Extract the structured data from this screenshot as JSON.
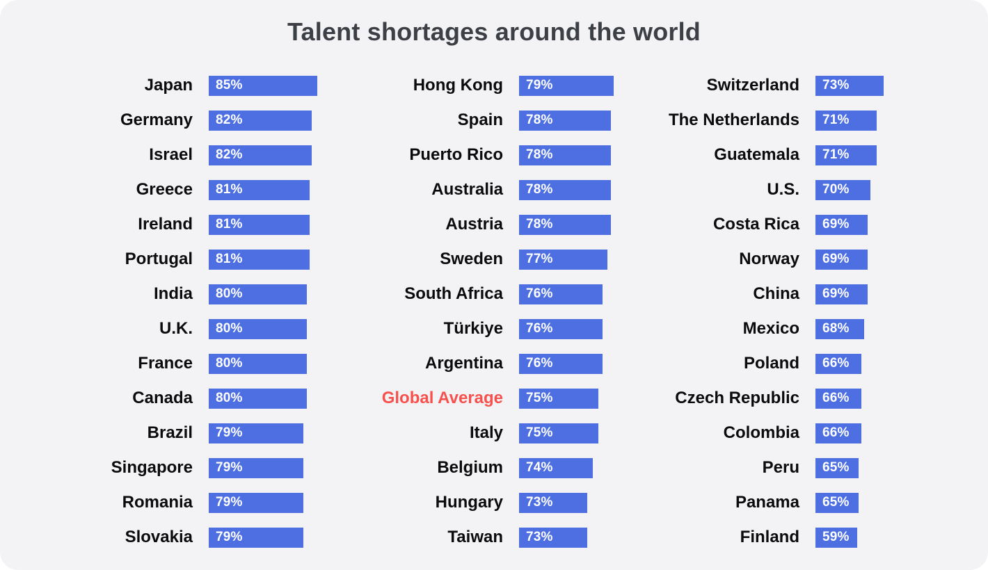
{
  "title": "Talent shortages around the world",
  "colors": {
    "bar": "#4d6fe2",
    "highlight_label": "#f7514d",
    "label": "#0b0b0e",
    "title": "#3c4046",
    "card_background": "#f3f3f5",
    "bar_text": "#ffffff"
  },
  "chart_data": {
    "type": "bar",
    "title": "Talent shortages around the world",
    "orientation": "horizontal",
    "unit": "%",
    "value_label_position": "inside-left",
    "grid": false,
    "legend": false,
    "highlighted_entry": "Global Average",
    "columns": [
      {
        "items": [
          {
            "label": "Japan",
            "value": 85
          },
          {
            "label": "Germany",
            "value": 82
          },
          {
            "label": "Israel",
            "value": 82
          },
          {
            "label": "Greece",
            "value": 81
          },
          {
            "label": "Ireland",
            "value": 81
          },
          {
            "label": "Portugal",
            "value": 81
          },
          {
            "label": "India",
            "value": 80
          },
          {
            "label": "U.K.",
            "value": 80
          },
          {
            "label": "France",
            "value": 80
          },
          {
            "label": "Canada",
            "value": 80
          },
          {
            "label": "Brazil",
            "value": 79
          },
          {
            "label": "Singapore",
            "value": 79
          },
          {
            "label": "Romania",
            "value": 79
          },
          {
            "label": "Slovakia",
            "value": 79
          }
        ]
      },
      {
        "items": [
          {
            "label": "Hong Kong",
            "value": 79
          },
          {
            "label": "Spain",
            "value": 78
          },
          {
            "label": "Puerto Rico",
            "value": 78
          },
          {
            "label": "Australia",
            "value": 78
          },
          {
            "label": "Austria",
            "value": 78
          },
          {
            "label": "Sweden",
            "value": 77
          },
          {
            "label": "South Africa",
            "value": 76
          },
          {
            "label": "Türkiye",
            "value": 76
          },
          {
            "label": "Argentina",
            "value": 76
          },
          {
            "label": "Global Average",
            "value": 75,
            "highlight": true
          },
          {
            "label": "Italy",
            "value": 75
          },
          {
            "label": "Belgium",
            "value": 74
          },
          {
            "label": "Hungary",
            "value": 73
          },
          {
            "label": "Taiwan",
            "value": 73
          }
        ]
      },
      {
        "items": [
          {
            "label": "Switzerland",
            "value": 73
          },
          {
            "label": "The Netherlands",
            "value": 71
          },
          {
            "label": "Guatemala",
            "value": 71
          },
          {
            "label": "U.S.",
            "value": 70
          },
          {
            "label": "Costa Rica",
            "value": 69
          },
          {
            "label": "Norway",
            "value": 69
          },
          {
            "label": "China",
            "value": 69
          },
          {
            "label": "Mexico",
            "value": 68
          },
          {
            "label": "Poland",
            "value": 66
          },
          {
            "label": "Czech Republic",
            "value": 66
          },
          {
            "label": "Colombia",
            "value": 66
          },
          {
            "label": "Peru",
            "value": 65
          },
          {
            "label": "Panama",
            "value": 65
          },
          {
            "label": "Finland",
            "value": 59
          }
        ]
      }
    ]
  }
}
